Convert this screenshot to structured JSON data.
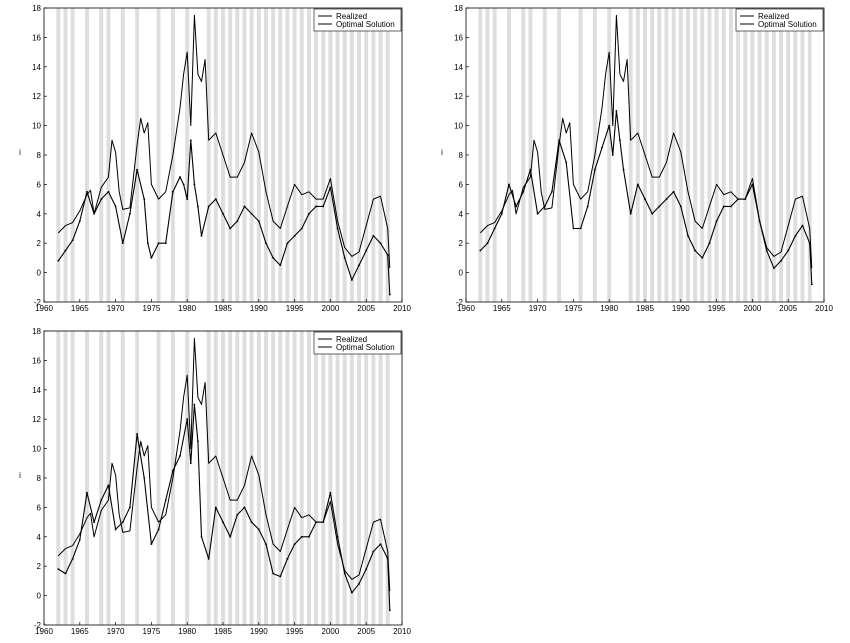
{
  "chart_data": [
    {
      "type": "line",
      "ylabel": "i",
      "xlim": [
        1960,
        2010
      ],
      "ylim": [
        -2,
        18
      ],
      "xticks": [
        "1960",
        "1965",
        "1970",
        "1975",
        "1980",
        "1985",
        "1990",
        "1995",
        "2000",
        "2005",
        "2010"
      ],
      "yticks": [
        "-2",
        "0",
        "2",
        "4",
        "6",
        "8",
        "10",
        "12",
        "14",
        "16",
        "18"
      ],
      "legend": {
        "placement": "top-right"
      },
      "series": [
        {
          "name": "Realized",
          "color": "#000000",
          "x": [
            1962,
            1963,
            1964,
            1965,
            1966,
            1966.5,
            1967,
            1968,
            1969,
            1969.5,
            1970,
            1970.5,
            1971,
            1972,
            1973,
            1973.5,
            1974,
            1974.5,
            1975,
            1976,
            1977,
            1978,
            1979,
            1979.5,
            1980,
            1980.5,
            1981,
            1981.5,
            1982,
            1982.5,
            1983,
            1984,
            1985,
            1986,
            1987,
            1988,
            1989,
            1990,
            1991,
            1992,
            1993,
            1994,
            1995,
            1996,
            1997,
            1998,
            1999,
            2000,
            2001,
            2002,
            2003,
            2004,
            2005,
            2006,
            2007,
            2008,
            2008.3
          ],
          "y": [
            2.7,
            3.2,
            3.4,
            4.2,
            5.3,
            5.6,
            4.0,
            5.8,
            6.5,
            9.0,
            8.2,
            5.5,
            4.3,
            4.4,
            8.7,
            10.5,
            9.5,
            10.2,
            6.0,
            5.0,
            5.5,
            8.0,
            11.2,
            13.5,
            15.0,
            10.0,
            17.5,
            13.5,
            13.0,
            14.5,
            9.0,
            9.5,
            8.0,
            6.5,
            6.5,
            7.5,
            9.5,
            8.2,
            5.5,
            3.5,
            3.0,
            4.5,
            6.0,
            5.3,
            5.5,
            5.0,
            5.0,
            6.4,
            3.5,
            1.7,
            1.1,
            1.4,
            3.2,
            5.0,
            5.2,
            3.0,
            0.3
          ]
        },
        {
          "name": "Optimal Solution",
          "color": "#000000",
          "x": [
            1962,
            1963,
            1964,
            1965,
            1966,
            1967,
            1968,
            1969,
            1970,
            1971,
            1972,
            1973,
            1974,
            1974.5,
            1975,
            1976,
            1977,
            1978,
            1979,
            1979.5,
            1980,
            1980.5,
            1981,
            1981.5,
            1982,
            1983,
            1984,
            1985,
            1986,
            1987,
            1988,
            1989,
            1990,
            1991,
            1992,
            1993,
            1994,
            1995,
            1996,
            1997,
            1998,
            1999,
            2000,
            2001,
            2002,
            2003,
            2004,
            2005,
            2006,
            2007,
            2008,
            2008.3
          ],
          "y": [
            0.8,
            1.5,
            2.2,
            3.5,
            5.5,
            4.0,
            5.0,
            5.5,
            4.5,
            2.0,
            4.0,
            7.0,
            5.0,
            2.0,
            1.0,
            2.0,
            2.0,
            5.5,
            6.5,
            6.0,
            5.0,
            9.0,
            6.0,
            4.5,
            2.5,
            4.5,
            5.0,
            4.0,
            3.0,
            3.5,
            4.5,
            4.0,
            3.5,
            2.0,
            1.0,
            0.5,
            2.0,
            2.5,
            3.0,
            4.0,
            4.5,
            4.5,
            5.8,
            3.0,
            1.0,
            -0.5,
            0.5,
            1.5,
            2.5,
            2.0,
            1.2,
            -1.5
          ]
        }
      ],
      "shaded_years": [
        1962,
        1963,
        1964,
        1966,
        1968,
        1969,
        1971,
        1973,
        1976,
        1978,
        1980,
        1983,
        1984,
        1985,
        1986,
        1987,
        1988,
        1989,
        1990,
        1991,
        1992,
        1993,
        1994,
        1995,
        1996,
        1997,
        1998,
        1999,
        2000,
        2001,
        2002,
        2003,
        2004,
        2005,
        2006,
        2007,
        2008
      ]
    },
    {
      "type": "line",
      "ylabel": "i",
      "xlim": [
        1960,
        2010
      ],
      "ylim": [
        -2,
        18
      ],
      "xticks": [
        "1960",
        "1965",
        "1970",
        "1975",
        "1980",
        "1985",
        "1990",
        "1995",
        "2000",
        "2005",
        "2010"
      ],
      "yticks": [
        "-2",
        "0",
        "2",
        "4",
        "6",
        "8",
        "10",
        "12",
        "14",
        "16",
        "18"
      ],
      "legend": {
        "placement": "top-right"
      },
      "series": [
        {
          "name": "Realized",
          "color": "#000000",
          "x": [
            1962,
            1963,
            1964,
            1965,
            1966,
            1966.5,
            1967,
            1968,
            1969,
            1969.5,
            1970,
            1970.5,
            1971,
            1972,
            1973,
            1973.5,
            1974,
            1974.5,
            1975,
            1976,
            1977,
            1978,
            1979,
            1979.5,
            1980,
            1980.5,
            1981,
            1981.5,
            1982,
            1982.5,
            1983,
            1984,
            1985,
            1986,
            1987,
            1988,
            1989,
            1990,
            1991,
            1992,
            1993,
            1994,
            1995,
            1996,
            1997,
            1998,
            1999,
            2000,
            2001,
            2002,
            2003,
            2004,
            2005,
            2006,
            2007,
            2008,
            2008.3
          ],
          "y": [
            2.7,
            3.2,
            3.4,
            4.2,
            5.3,
            5.6,
            4.0,
            5.8,
            6.5,
            9.0,
            8.2,
            5.5,
            4.3,
            4.4,
            8.7,
            10.5,
            9.5,
            10.2,
            6.0,
            5.0,
            5.5,
            8.0,
            11.2,
            13.5,
            15.0,
            10.0,
            17.5,
            13.5,
            13.0,
            14.5,
            9.0,
            9.5,
            8.0,
            6.5,
            6.5,
            7.5,
            9.5,
            8.2,
            5.5,
            3.5,
            3.0,
            4.5,
            6.0,
            5.3,
            5.5,
            5.0,
            5.0,
            6.4,
            3.5,
            1.7,
            1.1,
            1.4,
            3.2,
            5.0,
            5.2,
            3.0,
            0.3
          ]
        },
        {
          "name": "Optimal Solution",
          "color": "#000000",
          "x": [
            1962,
            1963,
            1964,
            1965,
            1966,
            1967,
            1968,
            1969,
            1970,
            1971,
            1972,
            1973,
            1974,
            1975,
            1976,
            1977,
            1978,
            1979,
            1980,
            1980.5,
            1981,
            1981.5,
            1982,
            1983,
            1984,
            1985,
            1986,
            1987,
            1988,
            1989,
            1990,
            1991,
            1992,
            1993,
            1994,
            1995,
            1996,
            1997,
            1998,
            1999,
            2000,
            2001,
            2002,
            2003,
            2004,
            2005,
            2006,
            2007,
            2008,
            2008.3
          ],
          "y": [
            1.5,
            2.0,
            3.0,
            4.0,
            6.0,
            4.5,
            5.5,
            7.0,
            4.0,
            4.5,
            5.5,
            9.0,
            7.5,
            3.0,
            3.0,
            4.5,
            7.0,
            8.5,
            10.0,
            8.0,
            11.0,
            9.0,
            7.0,
            4.0,
            6.0,
            5.0,
            4.0,
            4.5,
            5.0,
            5.5,
            4.5,
            2.5,
            1.5,
            1.0,
            2.0,
            3.5,
            4.5,
            4.5,
            5.0,
            5.0,
            6.0,
            3.5,
            1.5,
            0.3,
            0.8,
            1.5,
            2.5,
            3.2,
            2.0,
            -0.8
          ]
        }
      ],
      "shaded_years": [
        1962,
        1963,
        1964,
        1966,
        1968,
        1969,
        1971,
        1973,
        1976,
        1978,
        1980,
        1983,
        1984,
        1985,
        1986,
        1987,
        1988,
        1989,
        1990,
        1991,
        1992,
        1993,
        1994,
        1995,
        1996,
        1997,
        1998,
        1999,
        2000,
        2001,
        2002,
        2003,
        2004,
        2005,
        2006,
        2007,
        2008
      ]
    },
    {
      "type": "line",
      "ylabel": "i",
      "xlim": [
        1960,
        2010
      ],
      "ylim": [
        -2,
        18
      ],
      "xticks": [
        "1960",
        "1965",
        "1970",
        "1975",
        "1980",
        "1985",
        "1990",
        "1995",
        "2000",
        "2005",
        "2010"
      ],
      "yticks": [
        "-2",
        "0",
        "2",
        "4",
        "6",
        "8",
        "10",
        "12",
        "14",
        "16",
        "18"
      ],
      "legend": {
        "placement": "top-right"
      },
      "series": [
        {
          "name": "Realized",
          "color": "#000000",
          "x": [
            1962,
            1963,
            1964,
            1965,
            1966,
            1966.5,
            1967,
            1968,
            1969,
            1969.5,
            1970,
            1970.5,
            1971,
            1972,
            1973,
            1973.5,
            1974,
            1974.5,
            1975,
            1976,
            1977,
            1978,
            1979,
            1979.5,
            1980,
            1980.5,
            1981,
            1981.5,
            1982,
            1982.5,
            1983,
            1984,
            1985,
            1986,
            1987,
            1988,
            1989,
            1990,
            1991,
            1992,
            1993,
            1994,
            1995,
            1996,
            1997,
            1998,
            1999,
            2000,
            2001,
            2002,
            2003,
            2004,
            2005,
            2006,
            2007,
            2008,
            2008.3
          ],
          "y": [
            2.7,
            3.2,
            3.4,
            4.2,
            5.3,
            5.6,
            4.0,
            5.8,
            6.5,
            9.0,
            8.2,
            5.5,
            4.3,
            4.4,
            8.7,
            10.5,
            9.5,
            10.2,
            6.0,
            5.0,
            5.5,
            8.0,
            11.2,
            13.5,
            15.0,
            10.0,
            17.5,
            13.5,
            13.0,
            14.5,
            9.0,
            9.5,
            8.0,
            6.5,
            6.5,
            7.5,
            9.5,
            8.2,
            5.5,
            3.5,
            3.0,
            4.5,
            6.0,
            5.3,
            5.5,
            5.0,
            5.0,
            6.4,
            3.5,
            1.7,
            1.1,
            1.4,
            3.2,
            5.0,
            5.2,
            3.0,
            0.3
          ]
        },
        {
          "name": "Optimal Solution",
          "color": "#000000",
          "x": [
            1962,
            1963,
            1964,
            1965,
            1966,
            1967,
            1968,
            1969,
            1970,
            1971,
            1972,
            1973,
            1974,
            1975,
            1976,
            1977,
            1978,
            1979,
            1980,
            1980.5,
            1981,
            1981.5,
            1982,
            1983,
            1984,
            1985,
            1986,
            1987,
            1988,
            1989,
            1990,
            1991,
            1992,
            1993,
            1994,
            1995,
            1996,
            1997,
            1998,
            1999,
            2000,
            2001,
            2002,
            2003,
            2004,
            2005,
            2006,
            2007,
            2008,
            2008.3
          ],
          "y": [
            1.8,
            1.5,
            2.5,
            3.8,
            7.0,
            5.0,
            6.5,
            7.5,
            4.5,
            5.0,
            6.0,
            11.0,
            8.0,
            3.5,
            4.5,
            6.5,
            8.5,
            9.5,
            12.0,
            9.0,
            13.0,
            10.5,
            4.0,
            2.5,
            6.0,
            5.0,
            4.0,
            5.5,
            6.0,
            5.0,
            4.5,
            3.5,
            1.5,
            1.3,
            2.5,
            3.5,
            4.0,
            4.0,
            5.0,
            5.0,
            7.0,
            4.0,
            1.5,
            0.2,
            0.8,
            1.8,
            3.0,
            3.5,
            2.5,
            -1.0
          ]
        }
      ],
      "shaded_years": [
        1962,
        1963,
        1964,
        1966,
        1968,
        1969,
        1971,
        1973,
        1976,
        1978,
        1980,
        1983,
        1984,
        1985,
        1986,
        1987,
        1988,
        1989,
        1990,
        1991,
        1992,
        1993,
        1994,
        1995,
        1996,
        1997,
        1998,
        1999,
        2000,
        2001,
        2002,
        2003,
        2004,
        2005,
        2006,
        2007,
        2008
      ]
    }
  ]
}
